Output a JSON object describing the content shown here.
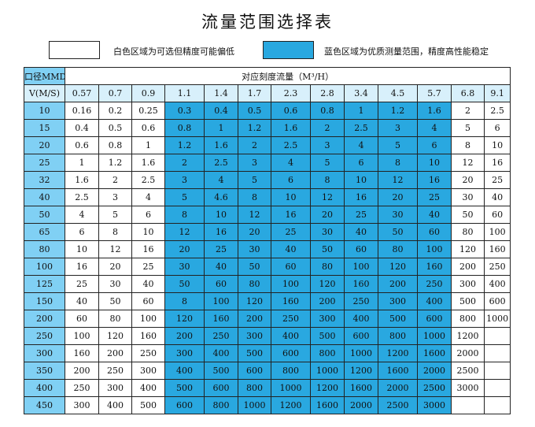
{
  "title": "流量范围选择表",
  "legend": {
    "white_label": "白色区域为可选但精度可能偏低",
    "blue_label": "蓝色区域为优质测量范围，精度高性能稳定",
    "blue_color": "#29a8e0"
  },
  "table": {
    "corner_label": "口径MMDN",
    "span_header": "对应刻度流量（M³/H）",
    "velocity_label": "V(M/S)",
    "velocities": [
      "0.57",
      "0.7",
      "0.9",
      "1.1",
      "1.4",
      "1.7",
      "2.3",
      "2.8",
      "3.4",
      "4.5",
      "5.7",
      "6.8",
      "9.1"
    ],
    "blue_column_range": [
      3,
      10
    ],
    "rows": [
      {
        "dn": "10",
        "values": [
          "0.16",
          "0.2",
          "0.25",
          "0.3",
          "0.4",
          "0.5",
          "0.6",
          "0.8",
          "1",
          "1.2",
          "1.6",
          "2",
          "2.5"
        ]
      },
      {
        "dn": "15",
        "values": [
          "0.4",
          "0.5",
          "0.6",
          "0.8",
          "1",
          "1.2",
          "1.6",
          "2",
          "2.5",
          "3",
          "4",
          "5",
          "6"
        ]
      },
      {
        "dn": "20",
        "values": [
          "0.6",
          "0.8",
          "1",
          "1.2",
          "1.6",
          "2",
          "2.5",
          "3",
          "4",
          "5",
          "6",
          "8",
          "10"
        ]
      },
      {
        "dn": "25",
        "values": [
          "1",
          "1.2",
          "1.6",
          "2",
          "2.5",
          "3",
          "4",
          "5",
          "6",
          "8",
          "10",
          "12",
          "16"
        ]
      },
      {
        "dn": "32",
        "values": [
          "1.6",
          "2",
          "2.5",
          "3",
          "4",
          "5",
          "6",
          "8",
          "10",
          "12",
          "16",
          "20",
          "25"
        ]
      },
      {
        "dn": "40",
        "values": [
          "2.5",
          "3",
          "4",
          "5",
          "4.6",
          "8",
          "10",
          "12",
          "16",
          "20",
          "25",
          "30",
          "40"
        ]
      },
      {
        "dn": "50",
        "values": [
          "4",
          "5",
          "6",
          "8",
          "10",
          "12",
          "16",
          "20",
          "25",
          "30",
          "40",
          "50",
          "60"
        ]
      },
      {
        "dn": "65",
        "values": [
          "6",
          "8",
          "10",
          "12",
          "16",
          "20",
          "25",
          "30",
          "40",
          "50",
          "60",
          "80",
          "100"
        ]
      },
      {
        "dn": "80",
        "values": [
          "10",
          "12",
          "16",
          "20",
          "25",
          "30",
          "40",
          "50",
          "60",
          "80",
          "100",
          "120",
          "160"
        ]
      },
      {
        "dn": "100",
        "values": [
          "16",
          "20",
          "25",
          "30",
          "40",
          "50",
          "60",
          "80",
          "100",
          "120",
          "160",
          "200",
          "250"
        ]
      },
      {
        "dn": "125",
        "values": [
          "25",
          "30",
          "40",
          "50",
          "60",
          "80",
          "100",
          "120",
          "160",
          "200",
          "250",
          "300",
          "400"
        ]
      },
      {
        "dn": "150",
        "values": [
          "40",
          "50",
          "60",
          "8",
          "100",
          "120",
          "160",
          "200",
          "250",
          "300",
          "400",
          "500",
          "600"
        ]
      },
      {
        "dn": "200",
        "values": [
          "60",
          "80",
          "100",
          "120",
          "160",
          "200",
          "250",
          "300",
          "400",
          "500",
          "600",
          "800",
          "1000"
        ]
      },
      {
        "dn": "250",
        "values": [
          "100",
          "120",
          "160",
          "200",
          "250",
          "300",
          "400",
          "500",
          "600",
          "800",
          "1000",
          "1200",
          ""
        ]
      },
      {
        "dn": "300",
        "values": [
          "160",
          "200",
          "250",
          "300",
          "400",
          "500",
          "600",
          "800",
          "1000",
          "1200",
          "1600",
          "2000",
          ""
        ]
      },
      {
        "dn": "350",
        "values": [
          "200",
          "250",
          "300",
          "400",
          "500",
          "600",
          "800",
          "1000",
          "1200",
          "1600",
          "2000",
          "2500",
          ""
        ]
      },
      {
        "dn": "400",
        "values": [
          "250",
          "300",
          "400",
          "500",
          "600",
          "800",
          "1000",
          "1200",
          "1600",
          "2000",
          "2500",
          "3000",
          ""
        ]
      },
      {
        "dn": "450",
        "values": [
          "300",
          "400",
          "500",
          "600",
          "800",
          "1000",
          "1200",
          "1600",
          "2000",
          "2500",
          "3000",
          "",
          ""
        ]
      }
    ]
  }
}
